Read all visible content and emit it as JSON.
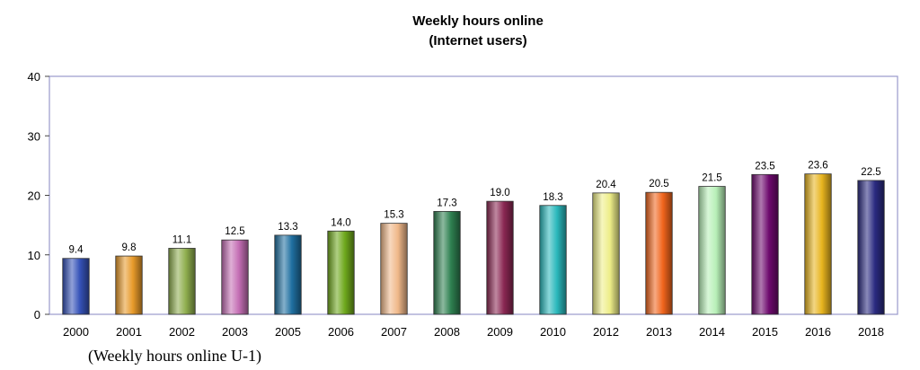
{
  "chart_data": {
    "type": "bar",
    "title": "Weekly hours online",
    "subtitle": "(Internet users)",
    "caption": "(Weekly hours online U-1)",
    "categories": [
      "2000",
      "2001",
      "2002",
      "2003",
      "2005",
      "2006",
      "2007",
      "2008",
      "2009",
      "2010",
      "2012",
      "2013",
      "2014",
      "2015",
      "2016",
      "2018"
    ],
    "values": [
      9.4,
      9.8,
      11.1,
      12.5,
      13.3,
      14.0,
      15.3,
      17.3,
      19.0,
      18.3,
      20.4,
      20.5,
      21.5,
      23.5,
      23.6,
      22.5
    ],
    "value_labels": [
      "9.4",
      "9.8",
      "11.1",
      "12.5",
      "13.3",
      "14.0",
      "15.3",
      "17.3",
      "19.0",
      "18.3",
      "20.4",
      "20.5",
      "21.5",
      "23.5",
      "23.6",
      "22.5"
    ],
    "colors": [
      "#3552b8",
      "#e89a2a",
      "#8fae4e",
      "#c46eb4",
      "#1f6fa0",
      "#6ea81c",
      "#f0b88a",
      "#2e8050",
      "#8a2752",
      "#2ab8bc",
      "#eeee88",
      "#f0641c",
      "#b8f0b8",
      "#6e0a6e",
      "#e8b41e",
      "#2a2a80"
    ],
    "yticks": [
      "0",
      "10",
      "20",
      "30",
      "40"
    ],
    "ylim": [
      0,
      40
    ],
    "xlabel": "",
    "ylabel": "",
    "grid": false,
    "border_color": "#9999cc"
  }
}
